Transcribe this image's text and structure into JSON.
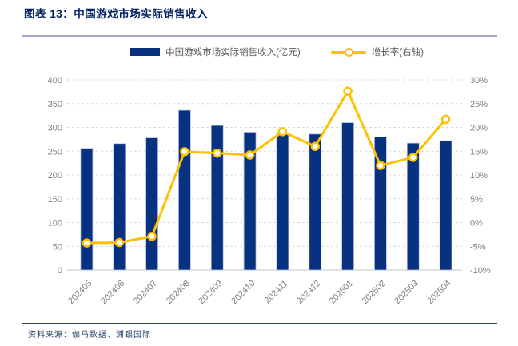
{
  "header": {
    "title": "图表 13：中国游戏市场实际销售收入"
  },
  "legend": {
    "bar_label": "中国游戏市场实际销售收入(亿元)",
    "line_label": "增长率(右轴)"
  },
  "footer": {
    "source": "资料来源：伽马数据、浦银国际"
  },
  "colors": {
    "title": "#002060",
    "bar": "#083180",
    "bar_edge": "#b9c5e4",
    "line": "#ffc000",
    "marker_fill": "#ffffff",
    "grid": "#d9d9d9",
    "axis_text": "#7f7f7f",
    "divider_top": "#a6a6d6",
    "divider_bottom": "#2e4180",
    "source_text": "#1f3864"
  },
  "chart_data": {
    "type": "combo",
    "categories": [
      "202405",
      "202406",
      "202407",
      "202408",
      "202409",
      "202410",
      "202411",
      "202412",
      "202501",
      "202502",
      "202503",
      "202504"
    ],
    "series": [
      {
        "name": "中国游戏市场实际销售收入(亿元)",
        "type": "bar",
        "axis": "left",
        "values": [
          256,
          266,
          278,
          336,
          304,
          290,
          288,
          286,
          310,
          280,
          267,
          272
        ]
      },
      {
        "name": "增长率(右轴)",
        "type": "line",
        "axis": "right",
        "values": [
          -4.3,
          -4.2,
          -2.9,
          14.9,
          14.6,
          14.2,
          19.1,
          16.0,
          27.6,
          12.0,
          13.7,
          21.7
        ]
      }
    ],
    "left_axis": {
      "min": 0,
      "max": 400,
      "step": 50,
      "ticks": [
        "400",
        "350",
        "300",
        "250",
        "200",
        "150",
        "100",
        "50",
        "0"
      ]
    },
    "right_axis": {
      "min": -10,
      "max": 30,
      "step": 5,
      "ticks": [
        "30%",
        "25%",
        "20%",
        "15%",
        "10%",
        "5%",
        "0%",
        "-5%",
        "-10%"
      ]
    },
    "grid": "horizontal-dashed",
    "legend_position": "top",
    "title": "中国游戏市场实际销售收入",
    "xlabel": "",
    "ylabel_left": "亿元",
    "ylabel_right": "%"
  }
}
